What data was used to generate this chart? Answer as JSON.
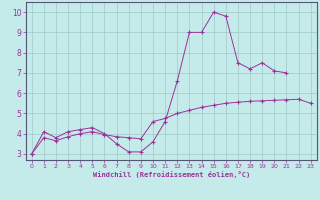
{
  "xlabel": "Windchill (Refroidissement éolien,°C)",
  "background_color": "#c5eaea",
  "grid_color": "#a0c8c8",
  "line_color": "#993399",
  "xlim": [
    -0.5,
    23.5
  ],
  "ylim": [
    2.7,
    10.5
  ],
  "yticks": [
    3,
    4,
    5,
    6,
    7,
    8,
    9,
    10
  ],
  "xticks": [
    0,
    1,
    2,
    3,
    4,
    5,
    6,
    7,
    8,
    9,
    10,
    11,
    12,
    13,
    14,
    15,
    16,
    17,
    18,
    19,
    20,
    21,
    22,
    23
  ],
  "series1_x": [
    0,
    1,
    2,
    3,
    4,
    5,
    6,
    7,
    8,
    9,
    10,
    11,
    12,
    13,
    14,
    15,
    16,
    17,
    18,
    19,
    20,
    21
  ],
  "series1_y": [
    3.0,
    4.1,
    3.8,
    4.1,
    4.2,
    4.3,
    4.0,
    3.5,
    3.1,
    3.1,
    3.6,
    4.6,
    6.6,
    9.0,
    9.0,
    10.0,
    9.8,
    7.5,
    7.2,
    7.5,
    7.1,
    7.0
  ],
  "series2_x": [
    0,
    1,
    2,
    3,
    4,
    5,
    6,
    7,
    8,
    9,
    10,
    11,
    12,
    13,
    14,
    15,
    16,
    17,
    18,
    19,
    20,
    21,
    22,
    23
  ],
  "series2_y": [
    3.0,
    3.8,
    3.65,
    3.85,
    4.0,
    4.1,
    3.95,
    3.85,
    3.8,
    3.75,
    4.6,
    4.75,
    5.0,
    5.15,
    5.3,
    5.4,
    5.5,
    5.55,
    5.6,
    5.62,
    5.65,
    5.67,
    5.7,
    5.5
  ]
}
